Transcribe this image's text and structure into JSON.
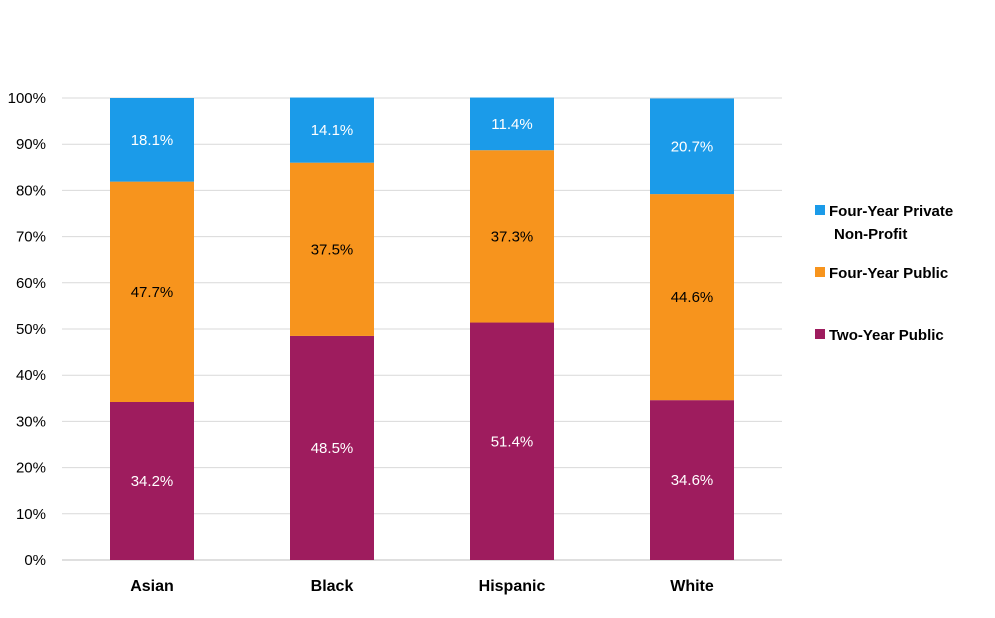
{
  "chart_data": {
    "type": "bar",
    "stacked": true,
    "categories": [
      "Asian",
      "Black",
      "Hispanic",
      "White"
    ],
    "series": [
      {
        "name": "Two-Year Public",
        "values": [
          34.2,
          48.5,
          51.4,
          34.6
        ],
        "labels": [
          "34.2%",
          "48.5%",
          "51.4%",
          "34.6%"
        ],
        "color": "#9E1C5E",
        "label_color": "#ffffff"
      },
      {
        "name": "Four-Year Public",
        "values": [
          47.7,
          37.5,
          37.3,
          44.6
        ],
        "labels": [
          "47.7%",
          "37.5%",
          "37.3%",
          "44.6%"
        ],
        "color": "#F7941D",
        "label_color": "#000000"
      },
      {
        "name": "Four-Year Private Non-Profit",
        "values": [
          18.1,
          14.1,
          11.4,
          20.7
        ],
        "labels": [
          "18.1%",
          "14.1%",
          "11.4%",
          "20.7%"
        ],
        "color": "#1B9BE9",
        "label_color": "#ffffff"
      }
    ],
    "yticks": [
      "0%",
      "10%",
      "20%",
      "30%",
      "40%",
      "50%",
      "60%",
      "70%",
      "80%",
      "90%",
      "100%"
    ],
    "ylim": [
      0,
      100
    ],
    "grid": true,
    "gridline_color": "#d9d9d9",
    "legend": {
      "placement": "right",
      "order": [
        2,
        1,
        0
      ],
      "entries": [
        {
          "lines": [
            "Four-Year Private",
            "Non-Profit"
          ]
        },
        {
          "lines": [
            "Four-Year Public"
          ]
        },
        {
          "lines": [
            "Two-Year Public"
          ]
        }
      ]
    }
  }
}
